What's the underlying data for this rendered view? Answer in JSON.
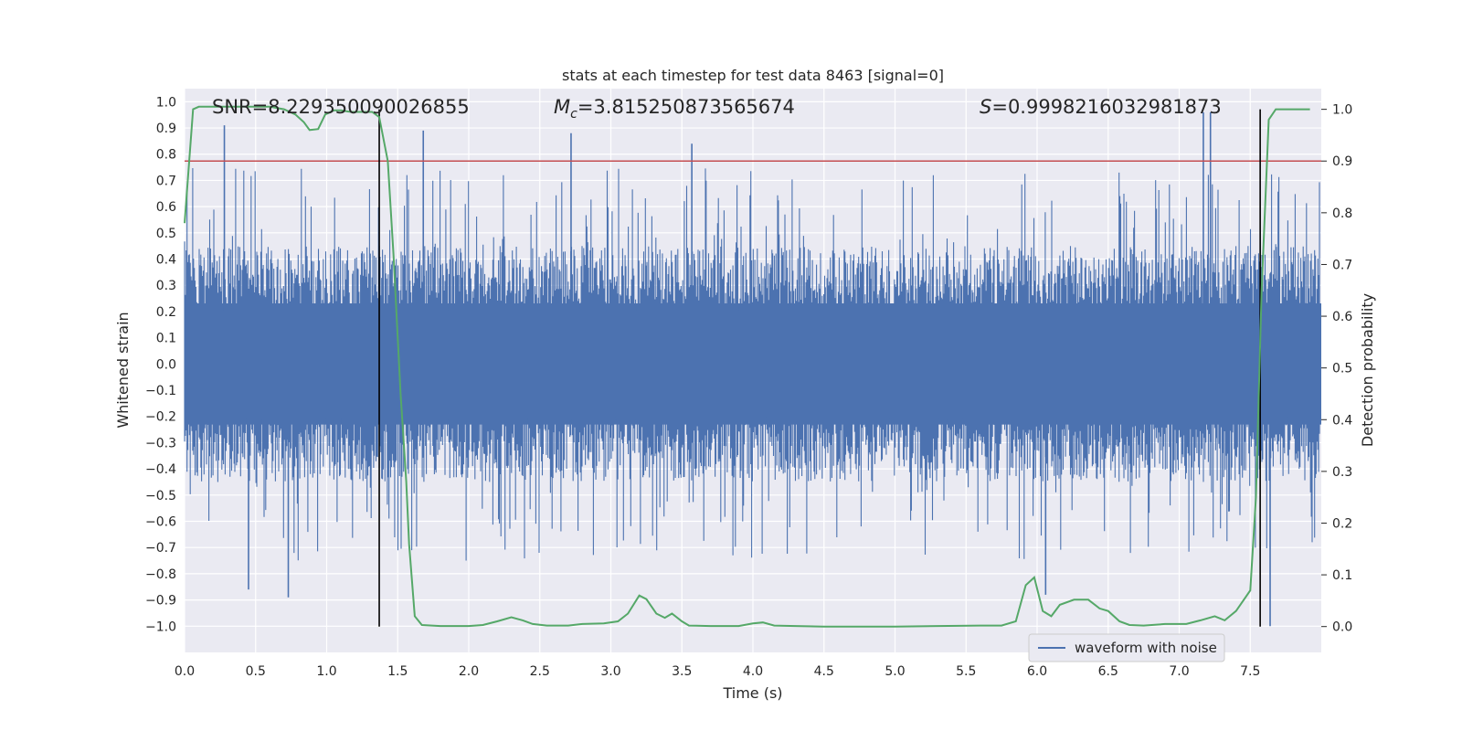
{
  "chart_data": {
    "type": "line",
    "title": "stats at each timestep for test data 8463 [signal=0]",
    "xlabel": "Time (s)",
    "ylabel": "Whitened strain",
    "y2label": "Detection probability",
    "xlim": [
      0.0,
      8.0
    ],
    "ylim": [
      -1.1,
      1.05
    ],
    "y2lim": [
      -0.05,
      1.04
    ],
    "xticks": [
      "0.0",
      "0.5",
      "1.0",
      "1.5",
      "2.0",
      "2.5",
      "3.0",
      "3.5",
      "4.0",
      "4.5",
      "5.0",
      "5.5",
      "6.0",
      "6.5",
      "7.0",
      "7.5"
    ],
    "yticks": [
      "−1.0",
      "−0.9",
      "−0.8",
      "−0.7",
      "−0.6",
      "−0.5",
      "−0.4",
      "−0.3",
      "−0.2",
      "−0.1",
      "0.0",
      "0.1",
      "0.2",
      "0.3",
      "0.4",
      "0.5",
      "0.6",
      "0.7",
      "0.8",
      "0.9",
      "1.0"
    ],
    "y2ticks": [
      "0.0",
      "0.1",
      "0.2",
      "0.3",
      "0.4",
      "0.5",
      "0.6",
      "0.7",
      "0.8",
      "0.9",
      "1.0"
    ],
    "annotations": {
      "snr": "SNR=8.229350090026855",
      "mc_symbol": "M",
      "mc_sub": "c",
      "mc_value": "=3.815250873565674",
      "s_symbol": "S",
      "s_value": "=0.9998216032981873"
    },
    "threshold_line": {
      "axis": "y2",
      "value": 0.9,
      "color": "#c44e52"
    },
    "vertical_markers": [
      1.37,
      7.57
    ],
    "series": [
      {
        "name": "waveform with noise",
        "axis": "y",
        "color": "#4c72b0",
        "kind": "noise",
        "envelope": {
          "dense_low": -0.42,
          "dense_high": 0.42,
          "peak_high": 0.96,
          "peak_low": -1.0
        },
        "notable_peaks": [
          {
            "x": 0.28,
            "y": 0.91
          },
          {
            "x": 0.45,
            "y": -0.86
          },
          {
            "x": 0.73,
            "y": -0.89
          },
          {
            "x": 1.68,
            "y": 0.89
          },
          {
            "x": 2.72,
            "y": 0.88
          },
          {
            "x": 3.57,
            "y": 0.84
          },
          {
            "x": 6.06,
            "y": -0.88
          },
          {
            "x": 7.17,
            "y": 0.96
          },
          {
            "x": 7.22,
            "y": 0.96
          },
          {
            "x": 7.64,
            "y": -1.0
          }
        ]
      },
      {
        "name": "detection probability",
        "axis": "y2",
        "color": "#55a868",
        "kind": "line",
        "points": [
          [
            0.0,
            0.78
          ],
          [
            0.06,
            1.0
          ],
          [
            0.1,
            1.005
          ],
          [
            0.2,
            1.005
          ],
          [
            0.4,
            1.005
          ],
          [
            0.6,
            1.005
          ],
          [
            0.7,
            1.0
          ],
          [
            0.78,
            0.99
          ],
          [
            0.84,
            0.975
          ],
          [
            0.88,
            0.96
          ],
          [
            0.94,
            0.962
          ],
          [
            0.99,
            0.99
          ],
          [
            1.05,
            0.998
          ],
          [
            1.1,
            0.998
          ],
          [
            1.17,
            0.995
          ],
          [
            1.25,
            0.995
          ],
          [
            1.32,
            0.995
          ],
          [
            1.37,
            0.985
          ],
          [
            1.43,
            0.9
          ],
          [
            1.47,
            0.72
          ],
          [
            1.52,
            0.45
          ],
          [
            1.56,
            0.28
          ],
          [
            1.58,
            0.16
          ],
          [
            1.62,
            0.02
          ],
          [
            1.67,
            0.003
          ],
          [
            1.8,
            0.001
          ],
          [
            2.0,
            0.001
          ],
          [
            2.1,
            0.003
          ],
          [
            2.2,
            0.01
          ],
          [
            2.3,
            0.018
          ],
          [
            2.38,
            0.012
          ],
          [
            2.45,
            0.005
          ],
          [
            2.55,
            0.002
          ],
          [
            2.7,
            0.002
          ],
          [
            2.8,
            0.005
          ],
          [
            2.95,
            0.006
          ],
          [
            3.05,
            0.01
          ],
          [
            3.12,
            0.025
          ],
          [
            3.2,
            0.06
          ],
          [
            3.25,
            0.053
          ],
          [
            3.32,
            0.025
          ],
          [
            3.38,
            0.017
          ],
          [
            3.43,
            0.025
          ],
          [
            3.5,
            0.01
          ],
          [
            3.55,
            0.002
          ],
          [
            3.7,
            0.001
          ],
          [
            3.9,
            0.001
          ],
          [
            4.0,
            0.006
          ],
          [
            4.07,
            0.008
          ],
          [
            4.15,
            0.002
          ],
          [
            4.3,
            0.001
          ],
          [
            4.5,
            0.0
          ],
          [
            4.8,
            0.0
          ],
          [
            5.0,
            0.0
          ],
          [
            5.3,
            0.001
          ],
          [
            5.6,
            0.002
          ],
          [
            5.75,
            0.002
          ],
          [
            5.85,
            0.01
          ],
          [
            5.92,
            0.08
          ],
          [
            5.98,
            0.095
          ],
          [
            6.04,
            0.03
          ],
          [
            6.1,
            0.02
          ],
          [
            6.16,
            0.042
          ],
          [
            6.26,
            0.052
          ],
          [
            6.36,
            0.052
          ],
          [
            6.44,
            0.035
          ],
          [
            6.5,
            0.03
          ],
          [
            6.58,
            0.01
          ],
          [
            6.65,
            0.003
          ],
          [
            6.75,
            0.002
          ],
          [
            6.9,
            0.005
          ],
          [
            7.05,
            0.005
          ],
          [
            7.15,
            0.012
          ],
          [
            7.25,
            0.02
          ],
          [
            7.32,
            0.012
          ],
          [
            7.4,
            0.03
          ],
          [
            7.45,
            0.05
          ],
          [
            7.5,
            0.07
          ],
          [
            7.54,
            0.25
          ],
          [
            7.58,
            0.65
          ],
          [
            7.63,
            0.98
          ],
          [
            7.68,
            1.0
          ],
          [
            7.75,
            1.0
          ],
          [
            7.92,
            1.0
          ]
        ]
      }
    ],
    "legend": {
      "location": "lower-right",
      "entries": [
        "waveform with noise"
      ]
    }
  }
}
